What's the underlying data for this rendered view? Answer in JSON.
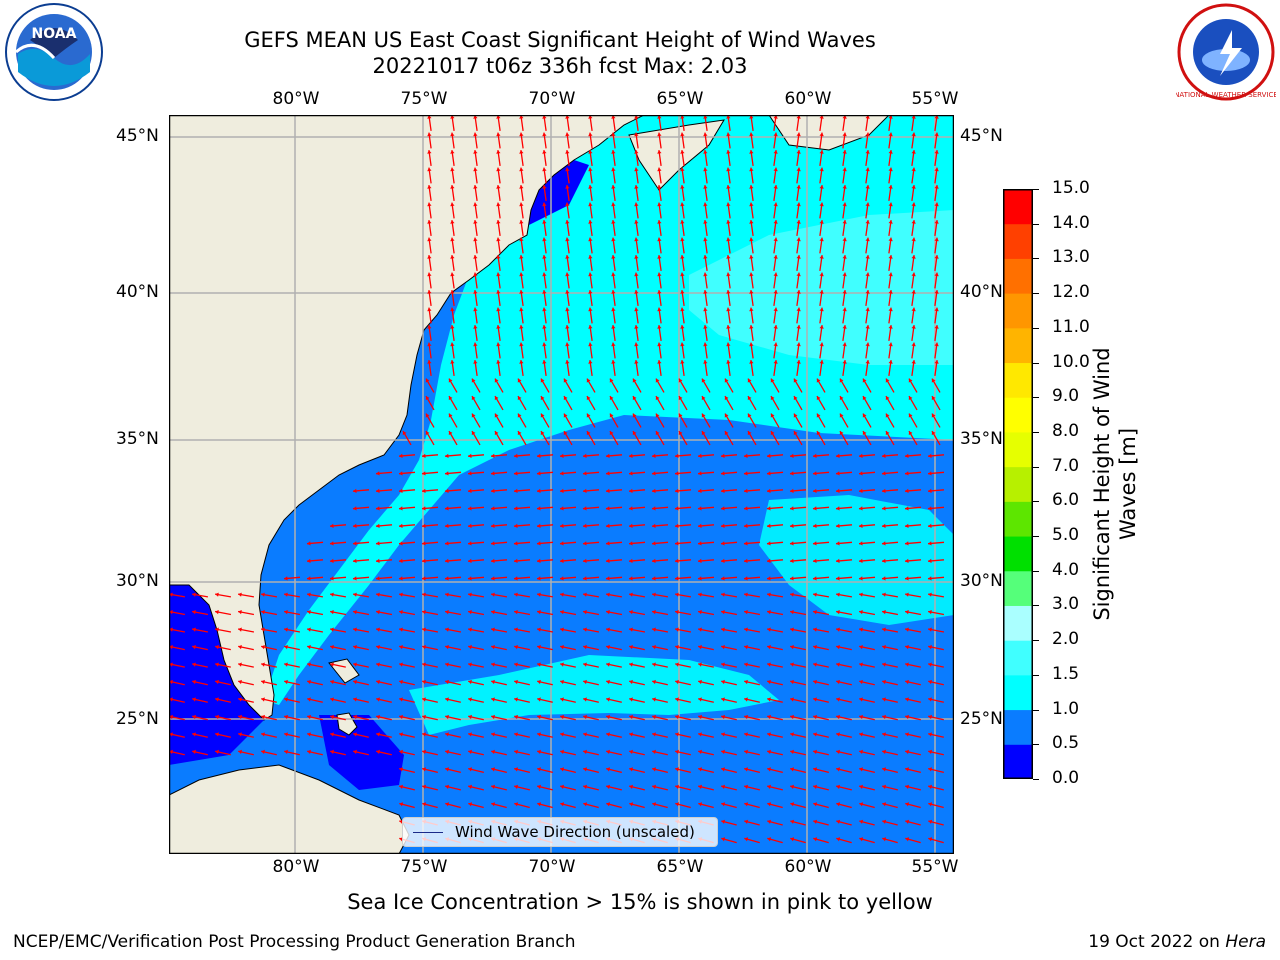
{
  "title_line1": "GEFS MEAN US East Coast Significant Height of Wind Waves",
  "title_line2": "20221017 t06z 336h fcst   Max: 2.03",
  "logos": {
    "left": "noaa-logo",
    "right": "nws-logo",
    "left_text": "NOAA",
    "right_text": "NATIONAL WEATHER SERVICE"
  },
  "lon_labels": [
    "80°W",
    "75°W",
    "70°W",
    "65°W",
    "60°W",
    "55°W"
  ],
  "lat_labels": [
    "45°N",
    "40°N",
    "35°N",
    "30°N",
    "25°N"
  ],
  "colorbar": {
    "title_line1": "Significant Height of Wind",
    "title_line2": "Waves [m]",
    "ticks": [
      "15.0",
      "14.0",
      "13.0",
      "12.0",
      "11.0",
      "10.0",
      "9.0",
      "8.0",
      "7.0",
      "6.0",
      "5.0",
      "4.0",
      "3.0",
      "2.0",
      "1.5",
      "1.0",
      "0.5",
      "0.0"
    ],
    "bands": [
      {
        "from": 0.0,
        "to": 0.5,
        "color": "#0000ff"
      },
      {
        "from": 0.5,
        "to": 1.0,
        "color": "#0a7cff"
      },
      {
        "from": 1.0,
        "to": 1.5,
        "color": "#00ffff"
      },
      {
        "from": 1.5,
        "to": 2.0,
        "color": "#40ffff"
      },
      {
        "from": 2.0,
        "to": 3.0,
        "color": "#aaffff"
      },
      {
        "from": 3.0,
        "to": 4.0,
        "color": "#55ff7a"
      },
      {
        "from": 4.0,
        "to": 5.0,
        "color": "#00e000"
      },
      {
        "from": 5.0,
        "to": 6.0,
        "color": "#5de600"
      },
      {
        "from": 6.0,
        "to": 7.0,
        "color": "#b7f000"
      },
      {
        "from": 7.0,
        "to": 8.0,
        "color": "#e6ff00"
      },
      {
        "from": 8.0,
        "to": 9.0,
        "color": "#ffff00"
      },
      {
        "from": 9.0,
        "to": 10.0,
        "color": "#ffe800"
      },
      {
        "from": 10.0,
        "to": 11.0,
        "color": "#ffb400"
      },
      {
        "from": 11.0,
        "to": 12.0,
        "color": "#ff9600"
      },
      {
        "from": 12.0,
        "to": 13.0,
        "color": "#ff7000"
      },
      {
        "from": 13.0,
        "to": 14.0,
        "color": "#ff4000"
      },
      {
        "from": 14.0,
        "to": 15.0,
        "color": "#ff0000"
      }
    ]
  },
  "legend_label": "Wind Wave Direction (unscaled)",
  "note": "Sea Ice Concentration > 15% is shown in pink to yellow",
  "footer_left": "NCEP/EMC/Verification Post Processing Product Generation Branch",
  "footer_right_prefix": "19 Oct 2022 on ",
  "footer_right_host": "Hera",
  "colors": {
    "land": "#efedde",
    "arrow": "#ff0000",
    "grid": "#b0b0b0"
  }
}
